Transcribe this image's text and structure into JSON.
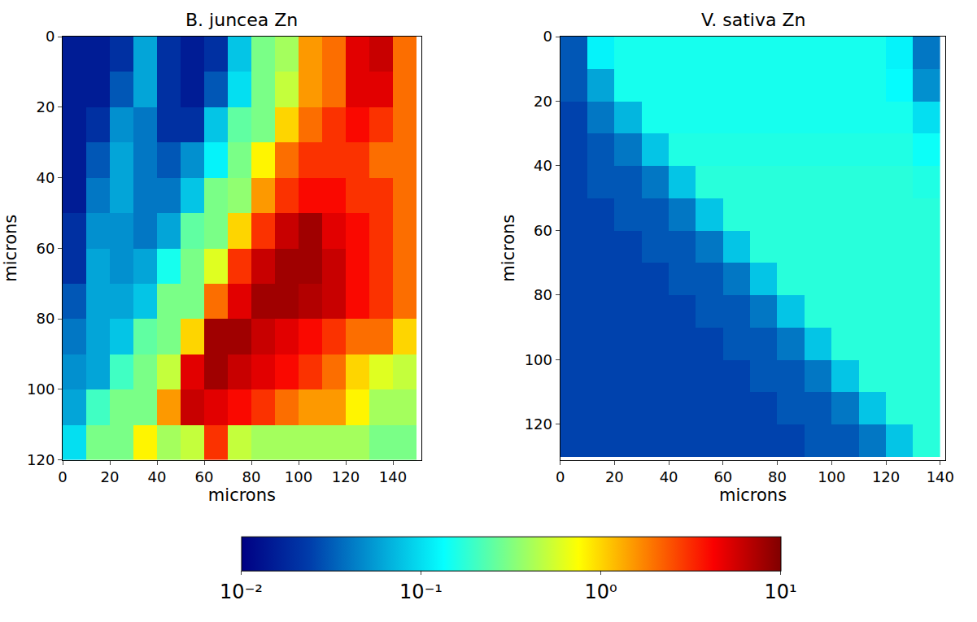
{
  "chart_data": [
    {
      "type": "heatmap",
      "title": "B. juncea Zn",
      "x_label": "microns",
      "y_label": "microns",
      "xlim": [
        0,
        152
      ],
      "ylim": [
        120,
        0
      ],
      "xticks": [
        0,
        20,
        40,
        60,
        80,
        100,
        120,
        140
      ],
      "yticks": [
        0,
        20,
        40,
        60,
        80,
        100,
        120
      ],
      "x": [
        5,
        15,
        25,
        35,
        45,
        55,
        65,
        75,
        85,
        95,
        105,
        115,
        125,
        135,
        145
      ],
      "y": [
        5,
        15,
        25,
        35,
        45,
        55,
        65,
        75,
        85,
        95,
        105,
        115
      ],
      "z": [
        [
          0.015,
          0.015,
          0.02,
          0.06,
          0.02,
          0.015,
          0.02,
          0.08,
          0.3,
          0.4,
          1.5,
          2,
          5,
          6,
          2
        ],
        [
          0.015,
          0.015,
          0.03,
          0.06,
          0.02,
          0.015,
          0.03,
          0.1,
          0.3,
          0.5,
          1.5,
          2,
          5,
          5,
          2
        ],
        [
          0.015,
          0.02,
          0.05,
          0.04,
          0.02,
          0.02,
          0.08,
          0.25,
          0.3,
          1,
          2,
          3,
          4,
          3,
          2
        ],
        [
          0.015,
          0.03,
          0.06,
          0.04,
          0.03,
          0.05,
          0.12,
          0.3,
          0.8,
          2,
          3,
          3,
          3,
          2,
          2
        ],
        [
          0.015,
          0.04,
          0.06,
          0.04,
          0.04,
          0.08,
          0.3,
          0.35,
          1.5,
          3,
          4,
          4,
          3,
          3,
          2
        ],
        [
          0.02,
          0.05,
          0.05,
          0.04,
          0.06,
          0.25,
          0.3,
          1,
          3,
          6,
          8,
          5,
          4,
          3,
          2
        ],
        [
          0.02,
          0.06,
          0.05,
          0.06,
          0.15,
          0.3,
          0.6,
          3,
          6,
          8,
          8,
          6,
          4,
          3,
          2
        ],
        [
          0.03,
          0.06,
          0.06,
          0.08,
          0.3,
          0.3,
          2,
          5,
          8,
          8,
          7,
          6,
          4,
          3,
          2
        ],
        [
          0.04,
          0.06,
          0.08,
          0.25,
          0.3,
          1,
          8,
          8,
          6,
          5,
          4,
          3,
          2,
          2,
          1
        ],
        [
          0.05,
          0.06,
          0.2,
          0.3,
          0.5,
          5,
          8,
          6,
          5,
          4,
          3,
          2,
          1,
          0.6,
          0.5
        ],
        [
          0.06,
          0.2,
          0.3,
          0.3,
          1.5,
          6,
          5,
          4,
          3,
          2,
          1.5,
          1.5,
          0.8,
          0.4,
          0.4
        ],
        [
          0.1,
          0.3,
          0.3,
          0.8,
          0.4,
          0.5,
          3,
          0.5,
          0.4,
          0.4,
          0.4,
          0.4,
          0.4,
          0.3,
          0.3
        ]
      ],
      "colorbar": {
        "range": [
          0.01,
          10
        ],
        "log": true,
        "ticks": [
          {
            "value": 0.01,
            "label": "10⁻²"
          },
          {
            "value": 0.1,
            "label": "10⁻¹"
          },
          {
            "value": 1,
            "label": "10⁰"
          },
          {
            "value": 10,
            "label": "10¹"
          }
        ]
      }
    },
    {
      "type": "heatmap",
      "title": "V. sativa Zn",
      "x_label": "microns",
      "y_label": "microns",
      "xlim": [
        0,
        142
      ],
      "ylim": [
        131,
        0
      ],
      "xticks": [
        0,
        20,
        40,
        60,
        80,
        100,
        120,
        140
      ],
      "yticks": [
        0,
        20,
        40,
        60,
        80,
        100,
        120
      ],
      "x": [
        5,
        15,
        25,
        35,
        45,
        55,
        65,
        75,
        85,
        95,
        105,
        115,
        125,
        135
      ],
      "y": [
        5,
        15,
        25,
        35,
        45,
        55,
        65,
        75,
        85,
        95,
        105,
        115,
        125
      ],
      "z": [
        [
          0.03,
          0.12,
          0.15,
          0.15,
          0.15,
          0.15,
          0.15,
          0.15,
          0.15,
          0.15,
          0.15,
          0.15,
          0.12,
          0.04
        ],
        [
          0.03,
          0.06,
          0.15,
          0.15,
          0.15,
          0.15,
          0.15,
          0.15,
          0.15,
          0.15,
          0.15,
          0.15,
          0.13,
          0.05
        ],
        [
          0.025,
          0.04,
          0.07,
          0.15,
          0.15,
          0.15,
          0.15,
          0.15,
          0.15,
          0.15,
          0.15,
          0.15,
          0.15,
          0.1
        ],
        [
          0.025,
          0.03,
          0.04,
          0.08,
          0.16,
          0.16,
          0.16,
          0.16,
          0.16,
          0.16,
          0.16,
          0.16,
          0.16,
          0.14
        ],
        [
          0.025,
          0.03,
          0.03,
          0.04,
          0.08,
          0.17,
          0.17,
          0.17,
          0.17,
          0.17,
          0.17,
          0.17,
          0.17,
          0.16
        ],
        [
          0.025,
          0.025,
          0.03,
          0.03,
          0.04,
          0.08,
          0.17,
          0.17,
          0.17,
          0.17,
          0.17,
          0.17,
          0.17,
          0.17
        ],
        [
          0.025,
          0.025,
          0.025,
          0.03,
          0.03,
          0.04,
          0.08,
          0.17,
          0.17,
          0.17,
          0.17,
          0.17,
          0.17,
          0.17
        ],
        [
          0.025,
          0.025,
          0.025,
          0.025,
          0.03,
          0.03,
          0.04,
          0.08,
          0.17,
          0.17,
          0.17,
          0.17,
          0.17,
          0.17
        ],
        [
          0.025,
          0.025,
          0.025,
          0.025,
          0.025,
          0.03,
          0.03,
          0.04,
          0.08,
          0.17,
          0.17,
          0.17,
          0.17,
          0.17
        ],
        [
          0.025,
          0.025,
          0.025,
          0.025,
          0.025,
          0.025,
          0.03,
          0.03,
          0.04,
          0.08,
          0.17,
          0.17,
          0.17,
          0.17
        ],
        [
          0.025,
          0.025,
          0.025,
          0.025,
          0.025,
          0.025,
          0.025,
          0.03,
          0.03,
          0.04,
          0.08,
          0.17,
          0.17,
          0.17
        ],
        [
          0.025,
          0.025,
          0.025,
          0.025,
          0.025,
          0.025,
          0.025,
          0.025,
          0.03,
          0.03,
          0.04,
          0.08,
          0.17,
          0.17
        ],
        [
          0.025,
          0.025,
          0.025,
          0.025,
          0.025,
          0.025,
          0.025,
          0.025,
          0.025,
          0.03,
          0.03,
          0.04,
          0.08,
          0.17
        ]
      ],
      "colorbar": {
        "range": [
          0.01,
          10
        ],
        "log": true,
        "ticks": [
          {
            "value": 0.01,
            "label": "10⁻²"
          },
          {
            "value": 0.1,
            "label": "10⁻¹"
          },
          {
            "value": 1,
            "label": "10⁰"
          },
          {
            "value": 10,
            "label": "10¹"
          }
        ]
      }
    }
  ]
}
